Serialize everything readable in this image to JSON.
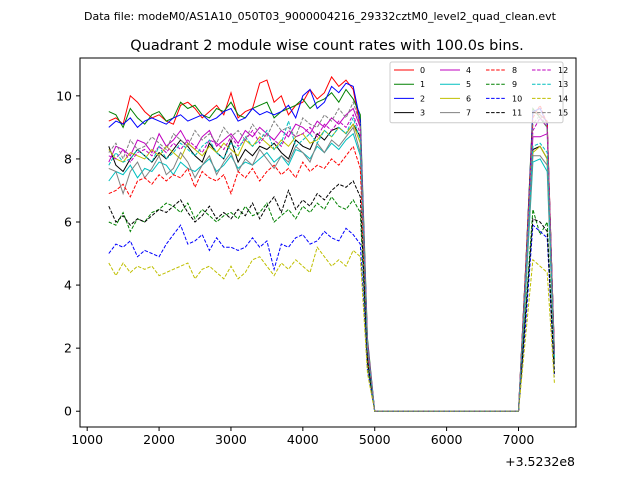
{
  "chart_data": {
    "type": "line",
    "suptitle": "Data file: modeM0/AS1A10_050T03_9000004216_29332cztM0_level2_quad_clean.evt",
    "title": "Quadrant 2 module wise count rates with 100.0s bins.",
    "xlabel": "",
    "ylabel": "",
    "x_offset_label": "+3.5232e8",
    "xlim": [
      900,
      7800
    ],
    "ylim": [
      -0.5,
      11.2
    ],
    "xticks": [
      1000,
      2000,
      3000,
      4000,
      5000,
      6000,
      7000
    ],
    "yticks": [
      0,
      2,
      4,
      6,
      8,
      10
    ],
    "legend": {
      "placement": "top-right",
      "ncol": 4
    },
    "x": [
      1300,
      1400,
      1500,
      1600,
      1700,
      1800,
      1900,
      2000,
      2100,
      2200,
      2300,
      2400,
      2500,
      2600,
      2700,
      2800,
      2900,
      3000,
      3100,
      3200,
      3300,
      3400,
      3500,
      3600,
      3700,
      3800,
      3900,
      4000,
      4100,
      4200,
      4300,
      4400,
      4500,
      4600,
      4700,
      4800,
      4900,
      5000,
      5100,
      5200,
      5300,
      5400,
      5500,
      5600,
      5700,
      5800,
      5900,
      6000,
      6100,
      6200,
      6300,
      6400,
      6500,
      6600,
      6700,
      6800,
      6900,
      7000,
      7100,
      7200,
      7300,
      7400,
      7500
    ],
    "series": [
      {
        "name": "0",
        "color": "#ff0000",
        "dash": false,
        "values": [
          9.2,
          9.3,
          9.1,
          10.0,
          9.8,
          9.5,
          9.3,
          9.4,
          9.2,
          9.1,
          9.7,
          9.8,
          9.6,
          9.3,
          9.5,
          9.7,
          9.4,
          10.1,
          9.3,
          9.5,
          9.6,
          10.4,
          10.5,
          9.8,
          10.0,
          9.4,
          9.7,
          9.8,
          10.2,
          9.9,
          10.1,
          10.6,
          10.3,
          10.5,
          10.2,
          9.0,
          2.0,
          0.0,
          0.0,
          0.0,
          0.0,
          0.0,
          0.0,
          0.0,
          0.0,
          0.0,
          0.0,
          0.0,
          0.0,
          0.0,
          0.0,
          0.0,
          0.0,
          0.0,
          0.0,
          0.0,
          0.0,
          0.0,
          4.5,
          9.5,
          9.4,
          9.2,
          1.8
        ]
      },
      {
        "name": "1",
        "color": "#008000",
        "dash": false,
        "values": [
          9.5,
          9.4,
          9.0,
          9.6,
          9.3,
          9.1,
          9.4,
          9.5,
          9.2,
          9.3,
          9.8,
          9.6,
          9.7,
          9.4,
          9.3,
          9.6,
          9.5,
          9.8,
          9.4,
          9.3,
          9.6,
          9.7,
          9.8,
          9.3,
          9.5,
          9.6,
          9.7,
          9.9,
          9.6,
          9.8,
          9.9,
          10.1,
          9.8,
          10.2,
          9.9,
          9.4,
          2.3,
          0.0,
          0.0,
          0.0,
          0.0,
          0.0,
          0.0,
          0.0,
          0.0,
          0.0,
          0.0,
          0.0,
          0.0,
          0.0,
          0.0,
          0.0,
          0.0,
          0.0,
          0.0,
          0.0,
          0.0,
          0.0,
          4.6,
          9.6,
          9.3,
          9.0,
          1.9
        ]
      },
      {
        "name": "2",
        "color": "#0000ff",
        "dash": false,
        "values": [
          9.0,
          9.2,
          9.1,
          9.3,
          9.0,
          9.2,
          9.3,
          9.2,
          9.1,
          9.3,
          9.4,
          9.2,
          9.3,
          9.4,
          9.2,
          9.3,
          9.5,
          9.6,
          9.2,
          9.3,
          9.6,
          9.4,
          9.5,
          9.4,
          9.5,
          9.7,
          9.3,
          10.0,
          10.2,
          9.6,
          9.8,
          10.3,
          10.1,
          10.4,
          10.3,
          9.2,
          2.1,
          0.0,
          0.0,
          0.0,
          0.0,
          0.0,
          0.0,
          0.0,
          0.0,
          0.0,
          0.0,
          0.0,
          0.0,
          0.0,
          0.0,
          0.0,
          0.0,
          0.0,
          0.0,
          0.0,
          0.0,
          0.0,
          4.5,
          9.5,
          9.6,
          9.1,
          1.8
        ]
      },
      {
        "name": "3",
        "color": "#000000",
        "dash": false,
        "values": [
          8.4,
          7.8,
          7.6,
          8.0,
          8.3,
          8.1,
          7.9,
          8.2,
          8.0,
          8.3,
          8.6,
          8.4,
          8.1,
          7.9,
          8.5,
          8.2,
          8.0,
          8.6,
          7.9,
          8.3,
          8.1,
          8.4,
          8.3,
          8.5,
          8.2,
          8.0,
          8.6,
          8.4,
          8.3,
          8.8,
          8.6,
          8.9,
          9.0,
          8.8,
          9.1,
          8.7,
          2.0,
          0.0,
          0.0,
          0.0,
          0.0,
          0.0,
          0.0,
          0.0,
          0.0,
          0.0,
          0.0,
          0.0,
          0.0,
          0.0,
          0.0,
          0.0,
          0.0,
          0.0,
          0.0,
          0.0,
          0.0,
          0.0,
          4.0,
          8.3,
          8.4,
          8.0,
          1.6
        ]
      },
      {
        "name": "4",
        "color": "#bf00bf",
        "dash": false,
        "values": [
          7.9,
          8.4,
          8.3,
          8.1,
          8.6,
          8.5,
          8.2,
          8.8,
          8.4,
          8.6,
          8.9,
          8.5,
          8.3,
          8.7,
          8.9,
          8.4,
          8.6,
          8.8,
          8.5,
          8.9,
          8.7,
          9.0,
          8.8,
          8.6,
          8.9,
          8.7,
          9.1,
          9.0,
          8.8,
          9.2,
          9.0,
          9.3,
          9.1,
          9.4,
          9.6,
          9.0,
          2.2,
          0.0,
          0.0,
          0.0,
          0.0,
          0.0,
          0.0,
          0.0,
          0.0,
          0.0,
          0.0,
          0.0,
          0.0,
          0.0,
          0.0,
          0.0,
          0.0,
          0.0,
          0.0,
          0.0,
          0.0,
          0.0,
          4.2,
          8.7,
          8.7,
          8.8,
          1.8
        ]
      },
      {
        "name": "5",
        "color": "#00bfbf",
        "dash": false,
        "values": [
          7.3,
          7.6,
          7.5,
          7.8,
          7.4,
          7.7,
          7.6,
          7.9,
          7.8,
          7.5,
          7.9,
          7.7,
          7.6,
          7.8,
          8.0,
          7.6,
          7.8,
          8.1,
          7.7,
          7.9,
          7.8,
          8.0,
          8.2,
          7.9,
          8.1,
          7.8,
          8.3,
          8.2,
          8.0,
          8.4,
          8.2,
          8.5,
          8.3,
          8.6,
          8.8,
          8.1,
          1.8,
          0.0,
          0.0,
          0.0,
          0.0,
          0.0,
          0.0,
          0.0,
          0.0,
          0.0,
          0.0,
          0.0,
          0.0,
          0.0,
          0.0,
          0.0,
          0.0,
          0.0,
          0.0,
          0.0,
          0.0,
          0.0,
          3.8,
          7.9,
          8.0,
          7.6,
          1.5
        ]
      },
      {
        "name": "6",
        "color": "#bfbf00",
        "dash": false,
        "values": [
          8.3,
          8.0,
          7.9,
          8.2,
          8.1,
          8.0,
          8.3,
          8.1,
          8.4,
          8.2,
          8.0,
          8.5,
          8.3,
          8.1,
          8.4,
          8.2,
          8.5,
          8.3,
          8.1,
          8.6,
          8.4,
          8.7,
          8.5,
          8.3,
          8.6,
          8.4,
          8.7,
          8.8,
          8.5,
          8.6,
          8.9,
          8.7,
          9.0,
          8.8,
          9.1,
          8.5,
          1.9,
          0.0,
          0.0,
          0.0,
          0.0,
          0.0,
          0.0,
          0.0,
          0.0,
          0.0,
          0.0,
          0.0,
          0.0,
          0.0,
          0.0,
          0.0,
          0.0,
          0.0,
          0.0,
          0.0,
          0.0,
          0.0,
          4.0,
          8.2,
          8.4,
          8.0,
          1.6
        ]
      },
      {
        "name": "7",
        "color": "#808080",
        "dash": false,
        "values": [
          7.7,
          7.6,
          6.9,
          7.6,
          7.9,
          7.4,
          7.7,
          8.1,
          7.5,
          7.7,
          8.2,
          7.9,
          7.4,
          7.8,
          8.1,
          7.5,
          7.9,
          8.2,
          7.6,
          8.0,
          7.8,
          8.3,
          8.0,
          7.7,
          8.1,
          7.9,
          8.4,
          8.2,
          7.9,
          8.5,
          8.2,
          8.6,
          8.4,
          8.7,
          9.0,
          8.2,
          1.9,
          0.0,
          0.0,
          0.0,
          0.0,
          0.0,
          0.0,
          0.0,
          0.0,
          0.0,
          0.0,
          0.0,
          0.0,
          0.0,
          0.0,
          0.0,
          0.0,
          0.0,
          0.0,
          0.0,
          0.0,
          0.0,
          3.9,
          8.1,
          8.1,
          7.8,
          1.5
        ]
      },
      {
        "name": "8",
        "color": "#ff0000",
        "dash": true,
        "values": [
          6.9,
          7.0,
          7.2,
          6.8,
          7.3,
          7.4,
          7.2,
          7.5,
          7.3,
          7.5,
          7.4,
          7.7,
          7.1,
          7.6,
          7.4,
          7.3,
          7.5,
          6.9,
          7.6,
          7.4,
          7.7,
          7.3,
          7.6,
          7.8,
          7.5,
          7.7,
          7.4,
          7.9,
          7.6,
          7.8,
          7.7,
          8.0,
          7.8,
          8.1,
          8.4,
          7.7,
          1.8,
          0.0,
          0.0,
          0.0,
          0.0,
          0.0,
          0.0,
          0.0,
          0.0,
          0.0,
          0.0,
          0.0,
          0.0,
          0.0,
          0.0,
          0.0,
          0.0,
          0.0,
          0.0,
          0.0,
          0.0,
          0.0,
          4.6,
          9.3,
          9.7,
          9.1,
          1.9
        ]
      },
      {
        "name": "9",
        "color": "#008000",
        "dash": true,
        "values": [
          6.0,
          5.9,
          6.3,
          5.7,
          6.1,
          6.0,
          6.3,
          6.4,
          6.6,
          6.5,
          6.3,
          6.6,
          6.1,
          6.4,
          6.2,
          6.0,
          6.2,
          6.3,
          6.1,
          6.5,
          6.2,
          6.3,
          6.6,
          6.0,
          6.2,
          6.4,
          6.1,
          6.5,
          6.3,
          6.6,
          6.4,
          6.8,
          6.5,
          6.4,
          6.7,
          6.3,
          1.5,
          0.0,
          0.0,
          0.0,
          0.0,
          0.0,
          0.0,
          0.0,
          0.0,
          0.0,
          0.0,
          0.0,
          0.0,
          0.0,
          0.0,
          0.0,
          0.0,
          0.0,
          0.0,
          0.0,
          0.0,
          0.0,
          3.2,
          6.4,
          5.6,
          6.0,
          1.2
        ]
      },
      {
        "name": "10",
        "color": "#0000ff",
        "dash": true,
        "values": [
          5.0,
          5.3,
          5.2,
          5.4,
          4.9,
          5.1,
          5.0,
          4.9,
          5.3,
          5.6,
          5.9,
          5.3,
          5.4,
          5.6,
          5.1,
          5.5,
          5.2,
          5.2,
          5.1,
          5.2,
          5.5,
          5.2,
          5.4,
          4.5,
          5.3,
          5.2,
          5.5,
          5.6,
          5.3,
          5.4,
          5.7,
          5.5,
          5.4,
          5.8,
          5.6,
          5.3,
          1.3,
          0.0,
          0.0,
          0.0,
          0.0,
          0.0,
          0.0,
          0.0,
          0.0,
          0.0,
          0.0,
          0.0,
          0.0,
          0.0,
          0.0,
          0.0,
          0.0,
          0.0,
          0.0,
          0.0,
          0.0,
          0.0,
          2.8,
          5.9,
          5.7,
          5.5,
          1.1
        ]
      },
      {
        "name": "11",
        "color": "#000000",
        "dash": true,
        "values": [
          6.5,
          6.0,
          6.2,
          5.9,
          6.1,
          6.0,
          6.2,
          6.4,
          6.3,
          6.5,
          6.7,
          6.3,
          6.0,
          6.2,
          6.5,
          6.1,
          6.3,
          6.1,
          6.4,
          6.2,
          6.6,
          6.1,
          6.5,
          6.8,
          6.3,
          7.0,
          6.4,
          6.7,
          6.5,
          6.9,
          6.7,
          7.0,
          7.2,
          7.1,
          7.3,
          6.8,
          1.6,
          0.0,
          0.0,
          0.0,
          0.0,
          0.0,
          0.0,
          0.0,
          0.0,
          0.0,
          0.0,
          0.0,
          0.0,
          0.0,
          0.0,
          0.0,
          0.0,
          0.0,
          0.0,
          0.0,
          0.0,
          0.0,
          3.1,
          6.1,
          6.0,
          5.7,
          1.2
        ]
      },
      {
        "name": "12",
        "color": "#bf00bf",
        "dash": true,
        "values": [
          8.1,
          8.0,
          8.3,
          7.9,
          8.2,
          8.3,
          8.1,
          8.4,
          8.2,
          8.5,
          8.3,
          8.6,
          8.4,
          8.2,
          8.6,
          8.5,
          8.3,
          8.7,
          8.4,
          8.6,
          8.9,
          8.5,
          8.8,
          8.6,
          8.4,
          8.9,
          8.7,
          8.8,
          9.0,
          8.7,
          9.1,
          8.9,
          9.2,
          9.0,
          9.4,
          8.8,
          2.0,
          0.0,
          0.0,
          0.0,
          0.0,
          0.0,
          0.0,
          0.0,
          0.0,
          0.0,
          0.0,
          0.0,
          0.0,
          0.0,
          0.0,
          0.0,
          0.0,
          0.0,
          0.0,
          0.0,
          0.0,
          0.0,
          4.3,
          8.9,
          9.3,
          9.0,
          1.8
        ]
      },
      {
        "name": "13",
        "color": "#00bfbf",
        "dash": true,
        "values": [
          7.8,
          8.2,
          7.9,
          8.0,
          8.3,
          8.1,
          7.9,
          8.4,
          8.0,
          8.2,
          8.5,
          8.3,
          8.1,
          8.4,
          8.6,
          8.2,
          8.0,
          8.5,
          8.3,
          8.7,
          8.4,
          8.6,
          8.9,
          8.3,
          8.5,
          9.2,
          8.4,
          8.6,
          8.8,
          8.5,
          8.9,
          8.7,
          9.0,
          8.8,
          9.3,
          8.6,
          2.0,
          0.0,
          0.0,
          0.0,
          0.0,
          0.0,
          0.0,
          0.0,
          0.0,
          0.0,
          0.0,
          0.0,
          0.0,
          0.0,
          0.0,
          0.0,
          0.0,
          0.0,
          0.0,
          0.0,
          0.0,
          0.0,
          4.1,
          8.4,
          8.5,
          8.2,
          1.7
        ]
      },
      {
        "name": "14",
        "color": "#bfbf00",
        "dash": true,
        "values": [
          4.7,
          4.3,
          4.7,
          4.4,
          4.6,
          4.5,
          4.6,
          4.3,
          4.4,
          4.5,
          4.6,
          4.7,
          4.2,
          4.5,
          4.6,
          4.4,
          4.2,
          4.6,
          4.2,
          4.4,
          4.8,
          4.9,
          4.6,
          4.3,
          4.7,
          4.5,
          4.8,
          4.6,
          4.4,
          5.2,
          4.9,
          4.6,
          4.8,
          4.6,
          5.1,
          4.9,
          1.2,
          0.0,
          0.0,
          0.0,
          0.0,
          0.0,
          0.0,
          0.0,
          0.0,
          0.0,
          0.0,
          0.0,
          0.0,
          0.0,
          0.0,
          0.0,
          0.0,
          0.0,
          0.0,
          0.0,
          0.0,
          0.0,
          2.4,
          4.8,
          4.6,
          4.4,
          0.9
        ]
      },
      {
        "name": "15",
        "color": "#808080",
        "dash": true,
        "values": [
          8.2,
          8.5,
          8.0,
          8.6,
          8.3,
          8.4,
          8.7,
          8.5,
          8.3,
          8.8,
          8.6,
          8.4,
          8.9,
          8.6,
          8.8,
          8.5,
          9.0,
          8.7,
          8.9,
          8.6,
          9.1,
          8.8,
          8.7,
          9.2,
          8.9,
          9.0,
          8.7,
          9.3,
          9.1,
          9.0,
          9.4,
          9.2,
          9.6,
          9.3,
          9.8,
          9.1,
          2.1,
          0.0,
          0.0,
          0.0,
          0.0,
          0.0,
          0.0,
          0.0,
          0.0,
          0.0,
          0.0,
          0.0,
          0.0,
          0.0,
          0.0,
          0.0,
          0.0,
          0.0,
          0.0,
          0.0,
          0.0,
          0.0,
          4.4,
          9.1,
          9.4,
          9.0,
          1.8
        ]
      }
    ]
  }
}
